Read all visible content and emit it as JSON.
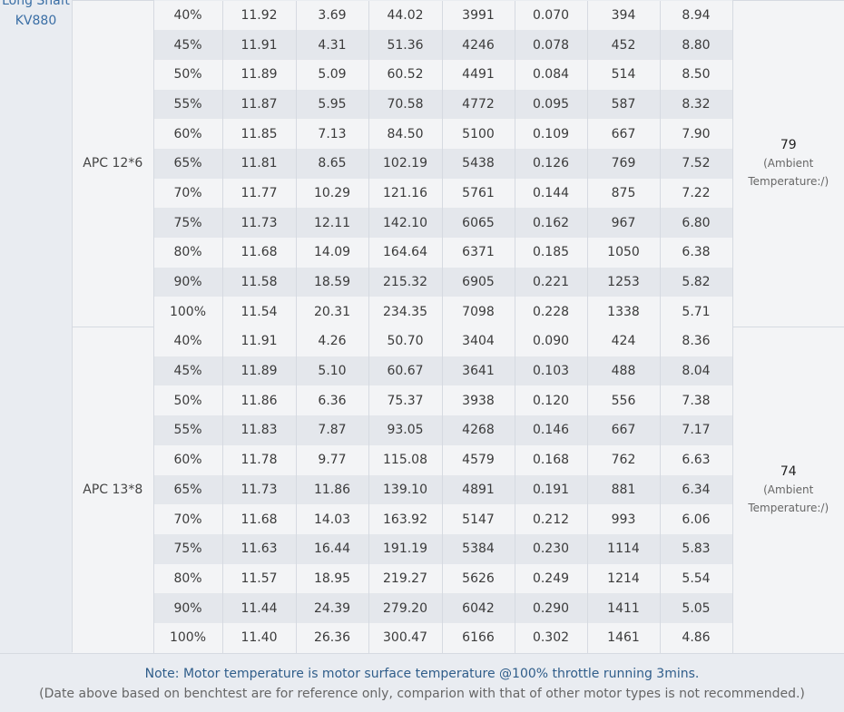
{
  "motor": {
    "model_lines": [
      "Long Shaft",
      "KV880"
    ]
  },
  "groups": [
    {
      "propeller": "APC 12*6",
      "temperature": "79",
      "temperature_note": "(Ambient Temperature:/)",
      "rows": [
        [
          "40%",
          "11.92",
          "3.69",
          "44.02",
          "3991",
          "0.070",
          "394",
          "8.94"
        ],
        [
          "45%",
          "11.91",
          "4.31",
          "51.36",
          "4246",
          "0.078",
          "452",
          "8.80"
        ],
        [
          "50%",
          "11.89",
          "5.09",
          "60.52",
          "4491",
          "0.084",
          "514",
          "8.50"
        ],
        [
          "55%",
          "11.87",
          "5.95",
          "70.58",
          "4772",
          "0.095",
          "587",
          "8.32"
        ],
        [
          "60%",
          "11.85",
          "7.13",
          "84.50",
          "5100",
          "0.109",
          "667",
          "7.90"
        ],
        [
          "65%",
          "11.81",
          "8.65",
          "102.19",
          "5438",
          "0.126",
          "769",
          "7.52"
        ],
        [
          "70%",
          "11.77",
          "10.29",
          "121.16",
          "5761",
          "0.144",
          "875",
          "7.22"
        ],
        [
          "75%",
          "11.73",
          "12.11",
          "142.10",
          "6065",
          "0.162",
          "967",
          "6.80"
        ],
        [
          "80%",
          "11.68",
          "14.09",
          "164.64",
          "6371",
          "0.185",
          "1050",
          "6.38"
        ],
        [
          "90%",
          "11.58",
          "18.59",
          "215.32",
          "6905",
          "0.221",
          "1253",
          "5.82"
        ],
        [
          "100%",
          "11.54",
          "20.31",
          "234.35",
          "7098",
          "0.228",
          "1338",
          "5.71"
        ]
      ]
    },
    {
      "propeller": "APC 13*8",
      "temperature": "74",
      "temperature_note": "(Ambient Temperature:/)",
      "rows": [
        [
          "40%",
          "11.91",
          "4.26",
          "50.70",
          "3404",
          "0.090",
          "424",
          "8.36"
        ],
        [
          "45%",
          "11.89",
          "5.10",
          "60.67",
          "3641",
          "0.103",
          "488",
          "8.04"
        ],
        [
          "50%",
          "11.86",
          "6.36",
          "75.37",
          "3938",
          "0.120",
          "556",
          "7.38"
        ],
        [
          "55%",
          "11.83",
          "7.87",
          "93.05",
          "4268",
          "0.146",
          "667",
          "7.17"
        ],
        [
          "60%",
          "11.78",
          "9.77",
          "115.08",
          "4579",
          "0.168",
          "762",
          "6.63"
        ],
        [
          "65%",
          "11.73",
          "11.86",
          "139.10",
          "4891",
          "0.191",
          "881",
          "6.34"
        ],
        [
          "70%",
          "11.68",
          "14.03",
          "163.92",
          "5147",
          "0.212",
          "993",
          "6.06"
        ],
        [
          "75%",
          "11.63",
          "16.44",
          "191.19",
          "5384",
          "0.230",
          "1114",
          "5.83"
        ],
        [
          "80%",
          "11.57",
          "18.95",
          "219.27",
          "5626",
          "0.249",
          "1214",
          "5.54"
        ],
        [
          "90%",
          "11.44",
          "24.39",
          "279.20",
          "6042",
          "0.290",
          "1411",
          "5.05"
        ],
        [
          "100%",
          "11.40",
          "26.36",
          "300.47",
          "6166",
          "0.302",
          "1461",
          "4.86"
        ]
      ]
    }
  ],
  "notes": {
    "main": "Note: Motor temperature is motor surface temperature @100% throttle running 3mins.",
    "sub": "(Date above based on benchtest are for reference only, comparion with that of other motor types is not recommended.)"
  }
}
